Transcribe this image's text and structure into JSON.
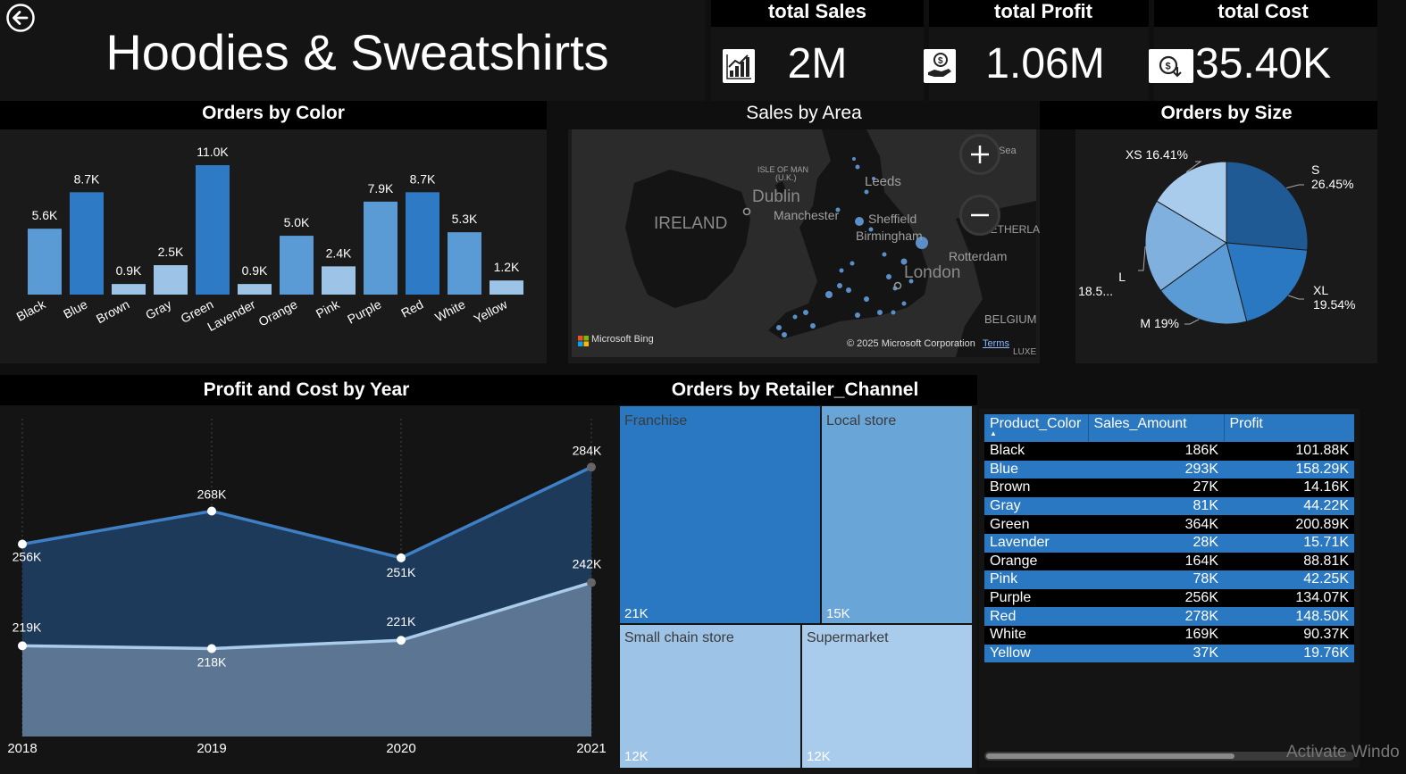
{
  "header": {
    "title": "Hoodies & Sweatshirts",
    "back_icon": "back-arrow-icon"
  },
  "kpis": [
    {
      "label": "total Sales",
      "value": "2M",
      "icon": "sales-chart-icon"
    },
    {
      "label": "total Profit",
      "value": "1.06M",
      "icon": "profit-hand-icon"
    },
    {
      "label": "total Cost",
      "value": "35.40K",
      "icon": "cost-coin-icon"
    }
  ],
  "colors": {
    "bar_dark": "#2f7ac4",
    "bar_mid": "#5b9bd5",
    "bar_light": "#9dc3e6",
    "profit_line": "#3f7fc4",
    "cost_line": "#a9cbec",
    "table_blue": "#2a78c2"
  },
  "map": {
    "title": "Sales by Area",
    "places": [
      "IRELAND",
      "Dublin",
      "ISLE OF MAN",
      "(U.K.)",
      "Leeds",
      "Manchester",
      "Sheffield",
      "Birmingham",
      "London",
      "Rotterdam",
      "NETHERLA",
      "BELGIUM",
      "LUXE",
      "Sea"
    ],
    "attribution": "Microsoft Bing",
    "copyright": "© 2025 Microsoft Corporation",
    "terms": "Terms"
  },
  "table": {
    "headers": [
      "Product_Color",
      "Sales_Amount",
      "Profit"
    ],
    "sort_indicator": "▲",
    "rows": [
      [
        "Black",
        "186K",
        "101.88K"
      ],
      [
        "Blue",
        "293K",
        "158.29K"
      ],
      [
        "Brown",
        "27K",
        "14.16K"
      ],
      [
        "Gray",
        "81K",
        "44.22K"
      ],
      [
        "Green",
        "364K",
        "200.89K"
      ],
      [
        "Lavender",
        "28K",
        "15.71K"
      ],
      [
        "Orange",
        "164K",
        "88.81K"
      ],
      [
        "Pink",
        "78K",
        "42.25K"
      ],
      [
        "Purple",
        "256K",
        "134.07K"
      ],
      [
        "Red",
        "278K",
        "148.50K"
      ],
      [
        "White",
        "169K",
        "90.37K"
      ],
      [
        "Yellow",
        "37K",
        "19.76K"
      ]
    ]
  },
  "watermark": "Activate Windo",
  "chart_data": [
    {
      "type": "bar",
      "title": "Orders by Color",
      "categories": [
        "Black",
        "Blue",
        "Brown",
        "Gray",
        "Green",
        "Lavender",
        "Orange",
        "Pink",
        "Purple",
        "Red",
        "White",
        "Yellow"
      ],
      "values": [
        5600,
        8700,
        900,
        2500,
        11000,
        900,
        5000,
        2400,
        7900,
        8700,
        5300,
        1200
      ],
      "labels": [
        "5.6K",
        "8.7K",
        "0.9K",
        "2.5K",
        "11.0K",
        "0.9K",
        "5.0K",
        "2.4K",
        "7.9K",
        "8.7K",
        "5.3K",
        "1.2K"
      ],
      "ylim": [
        0,
        11000
      ]
    },
    {
      "type": "pie",
      "title": "Orders by Size",
      "slices": [
        {
          "name": "S",
          "value": 26.45,
          "label": "26.45%",
          "color": "#1f5a94"
        },
        {
          "name": "XL",
          "value": 19.54,
          "label": "19.54%",
          "color": "#2a78c2"
        },
        {
          "name": "M",
          "value": 19.0,
          "label": "19%",
          "color": "#5b9bd5"
        },
        {
          "name": "L",
          "value": 18.6,
          "label": "18.5...",
          "color": "#7fb0de"
        },
        {
          "name": "XS",
          "value": 16.41,
          "label": "16.41%",
          "color": "#a9cbec"
        }
      ]
    },
    {
      "type": "area",
      "title": "Profit and Cost by Year",
      "x": [
        "2018",
        "2019",
        "2020",
        "2021"
      ],
      "series": [
        {
          "values": [
            256,
            268,
            251,
            284
          ],
          "labels": [
            "256K",
            "268K",
            "251K",
            "284K"
          ]
        },
        {
          "values": [
            219,
            218,
            221,
            242
          ],
          "labels": [
            "219K",
            "218K",
            "221K",
            "242K"
          ]
        }
      ],
      "ylim": [
        186,
        300
      ]
    },
    {
      "type": "treemap",
      "title": "Orders by Retailer_Channel",
      "items": [
        {
          "name": "Franchise",
          "value": 21000,
          "label": "21K",
          "color": "#2a78c2"
        },
        {
          "name": "Local store",
          "value": 15000,
          "label": "15K",
          "color": "#6aa5d8"
        },
        {
          "name": "Small chain store",
          "value": 12000,
          "label": "12K",
          "color": "#9dc3e6"
        },
        {
          "name": "Supermarket",
          "value": 12000,
          "label": "12K",
          "color": "#a9cbec"
        }
      ]
    }
  ]
}
